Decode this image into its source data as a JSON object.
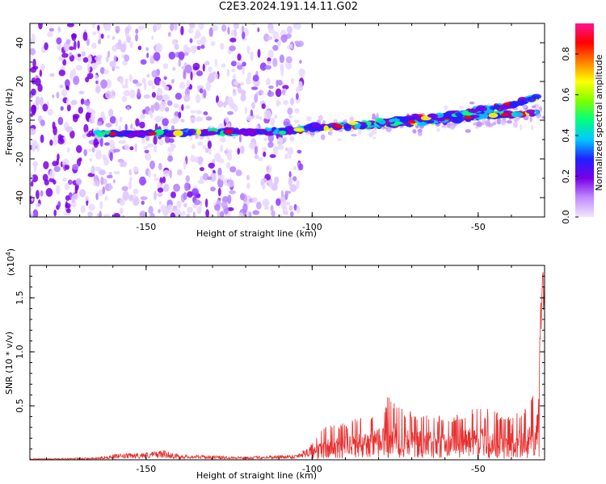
{
  "title": "C2E3.2024.191.14.11.G02",
  "chart_data": [
    {
      "type": "heatmap",
      "xlabel": "Height of straight line (km)",
      "ylabel": "Frequency (Hz)",
      "xlim": [
        -185,
        -30
      ],
      "ylim": [
        -50,
        50
      ],
      "xticks": [
        -150,
        -100,
        -50
      ],
      "xtick_labels": [
        "-150",
        "-100",
        "-50"
      ],
      "yticks": [
        -40,
        -20,
        0,
        20,
        40
      ],
      "ytick_labels": [
        "-40",
        "-20",
        "0",
        "20",
        "40"
      ],
      "colorbar": {
        "label": "Normalized spectral amplitude",
        "range": [
          0,
          0.95
        ],
        "ticks": [
          0.0,
          0.2,
          0.4,
          0.6,
          0.8
        ],
        "tick_labels": [
          "0.0",
          "0.2",
          "0.4",
          "0.6",
          "0.8"
        ],
        "colormap": [
          "#f2e6ff",
          "#c08cff",
          "#7a00e6",
          "#2020ff",
          "#00c8ff",
          "#00ff80",
          "#80ff00",
          "#ffff00",
          "#ff8000",
          "#ff0000",
          "#ff1493"
        ]
      },
      "ridge_track": {
        "height_km": [
          -165,
          -150,
          -130,
          -110,
          -100,
          -90,
          -80,
          -70,
          -60,
          -50,
          -40,
          -32
        ],
        "frequency_hz": [
          -7,
          -7,
          -6,
          -6,
          -4,
          -3,
          -2,
          -1,
          0,
          2,
          3,
          4
        ]
      },
      "upper_track": {
        "height_km": [
          -80,
          -60,
          -50,
          -40,
          -32
        ],
        "frequency_hz": [
          -1,
          2,
          5,
          8,
          12
        ]
      },
      "grid": false
    },
    {
      "type": "line",
      "xlabel": "Height of straight line (km)",
      "ylabel": "SNR (10 * v/v)",
      "y_multiplier_label": "(x10",
      "y_multiplier_exp": "4",
      "y_multiplier_close": ")",
      "xlim": [
        -185,
        -30
      ],
      "ylim": [
        0,
        1.8
      ],
      "xticks": [
        -150,
        -100,
        -50
      ],
      "xtick_labels": [
        "-150",
        "-100",
        "-50"
      ],
      "yticks": [
        0.5,
        1.0,
        1.5
      ],
      "ytick_labels": [
        "0.5",
        "1.0",
        "1.5"
      ],
      "series_color": "#e83030",
      "envelope": {
        "height_km": [
          -185,
          -165,
          -160,
          -150,
          -145,
          -140,
          -120,
          -105,
          -100,
          -97,
          -90,
          -85,
          -80,
          -77,
          -70,
          -60,
          -50,
          -40,
          -35,
          -32,
          -31.5,
          -30.8
        ],
        "snr": [
          0.01,
          0.02,
          0.05,
          0.07,
          0.09,
          0.05,
          0.03,
          0.05,
          0.15,
          0.3,
          0.35,
          0.4,
          0.45,
          0.6,
          0.45,
          0.4,
          0.5,
          0.4,
          0.5,
          0.7,
          1.2,
          1.8
        ]
      },
      "grid": false
    }
  ]
}
